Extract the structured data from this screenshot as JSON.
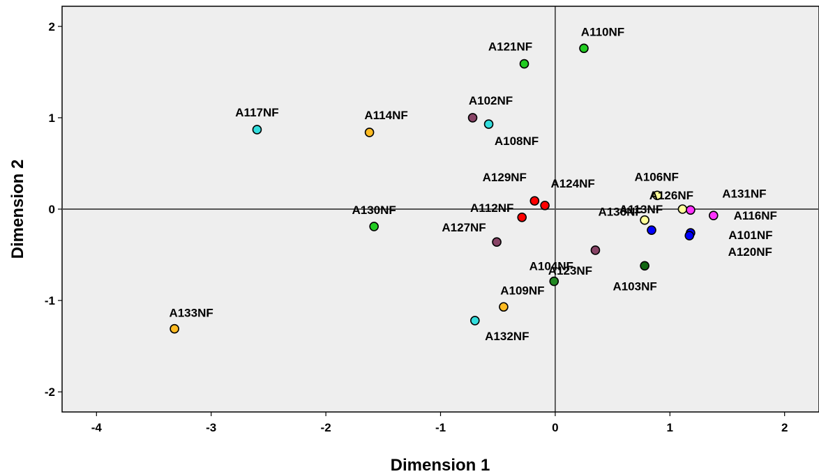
{
  "chart_data": {
    "type": "scatter",
    "title": "",
    "xlabel": "Dimension 1",
    "ylabel": "Dimension 2",
    "xlim": [
      -4.3,
      2.3
    ],
    "ylim": [
      -2.22,
      2.22
    ],
    "x_ticks": [
      -4,
      -3,
      -2,
      -1,
      0,
      1,
      2
    ],
    "y_ticks": [
      -2,
      -1,
      0,
      1,
      2
    ],
    "reference_lines": {
      "x": 0,
      "y": 0
    },
    "grid": false,
    "plot_background": "#eeeeee",
    "points": [
      {
        "label": "A110NF",
        "x": 0.25,
        "y": 1.76,
        "color": "#22cc22"
      },
      {
        "label": "A121NF",
        "x": -0.27,
        "y": 1.59,
        "color": "#22cc22"
      },
      {
        "label": "A117NF",
        "x": -2.6,
        "y": 0.87,
        "color": "#33dddd"
      },
      {
        "label": "A114NF",
        "x": -1.62,
        "y": 0.84,
        "color": "#ffbb22"
      },
      {
        "label": "A102NF",
        "x": -0.72,
        "y": 1.0,
        "color": "#884466"
      },
      {
        "label": "A108NF",
        "x": -0.58,
        "y": 0.93,
        "color": "#33dddd"
      },
      {
        "label": "A129NF",
        "x": -0.18,
        "y": 0.09,
        "color": "#ff0000"
      },
      {
        "label": "A124NF",
        "x": -0.09,
        "y": 0.04,
        "color": "#ff0000"
      },
      {
        "label": "A112NF",
        "x": -0.29,
        "y": -0.09,
        "color": "#ff0000"
      },
      {
        "label": "A130NF",
        "x": -1.58,
        "y": -0.19,
        "color": "#22cc22"
      },
      {
        "label": "A127NF",
        "x": -0.51,
        "y": -0.36,
        "color": "#884466"
      },
      {
        "label": "A106NF",
        "x": 0.89,
        "y": 0.15,
        "color": "#ffff99"
      },
      {
        "label": "A126NF",
        "x": 1.11,
        "y": 0.0,
        "color": "#ffff99"
      },
      {
        "label": "A131NF",
        "x": 1.18,
        "y": -0.01,
        "color": "#ff33ff"
      },
      {
        "label": "A116NF",
        "x": 1.38,
        "y": -0.07,
        "color": "#ff33ff"
      },
      {
        "label": "A136NF",
        "x": 0.78,
        "y": -0.12,
        "color": "#ffff99"
      },
      {
        "label": "A113NF",
        "x": 0.84,
        "y": -0.23,
        "color": "#0000ff"
      },
      {
        "label": "A101NF",
        "x": 1.18,
        "y": -0.26,
        "color": "#0000ff"
      },
      {
        "label": "A120NF",
        "x": 1.17,
        "y": -0.29,
        "color": "#0000ff"
      },
      {
        "label": "A123NF",
        "x": 0.35,
        "y": -0.45,
        "color": "#884466"
      },
      {
        "label": "A103NF",
        "x": 0.78,
        "y": -0.62,
        "color": "#116611"
      },
      {
        "label": "A104NF",
        "x": -0.01,
        "y": -0.79,
        "color": "#228822"
      },
      {
        "label": "A109NF",
        "x": -0.45,
        "y": -1.07,
        "color": "#ffbb22"
      },
      {
        "label": "A132NF",
        "x": -0.7,
        "y": -1.22,
        "color": "#33dddd"
      },
      {
        "label": "A133NF",
        "x": -3.32,
        "y": -1.31,
        "color": "#ffbb22"
      }
    ]
  }
}
